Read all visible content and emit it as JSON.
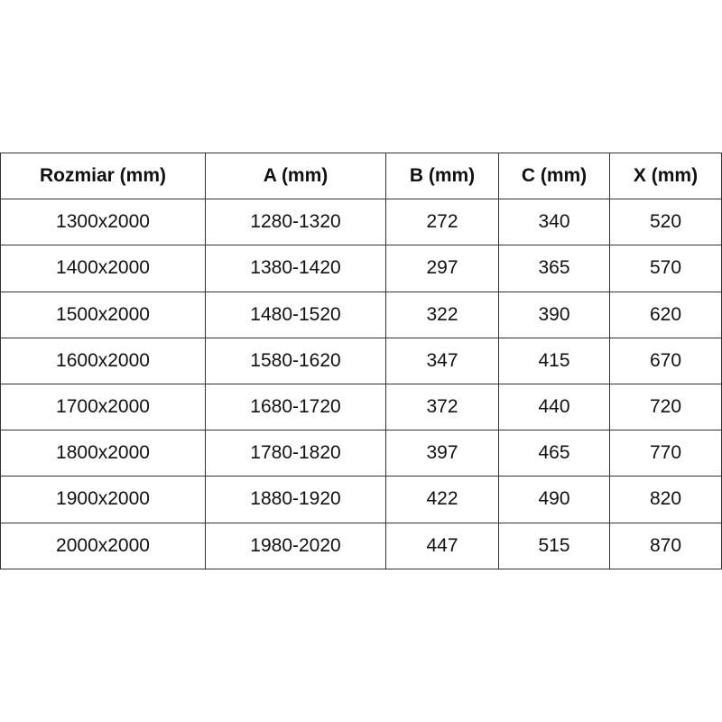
{
  "table": {
    "headers": [
      "Rozmiar (mm)",
      "A (mm)",
      "B (mm)",
      "C (mm)",
      "X (mm)"
    ],
    "rows": [
      [
        "1300x2000",
        "1280-1320",
        "272",
        "340",
        "520"
      ],
      [
        "1400x2000",
        "1380-1420",
        "297",
        "365",
        "570"
      ],
      [
        "1500x2000",
        "1480-1520",
        "322",
        "390",
        "620"
      ],
      [
        "1600x2000",
        "1580-1620",
        "347",
        "415",
        "670"
      ],
      [
        "1700x2000",
        "1680-1720",
        "372",
        "440",
        "720"
      ],
      [
        "1800x2000",
        "1780-1820",
        "397",
        "465",
        "770"
      ],
      [
        "1900x2000",
        "1880-1920",
        "422",
        "490",
        "820"
      ],
      [
        "2000x2000",
        "1980-2020",
        "447",
        "515",
        "870"
      ]
    ]
  }
}
